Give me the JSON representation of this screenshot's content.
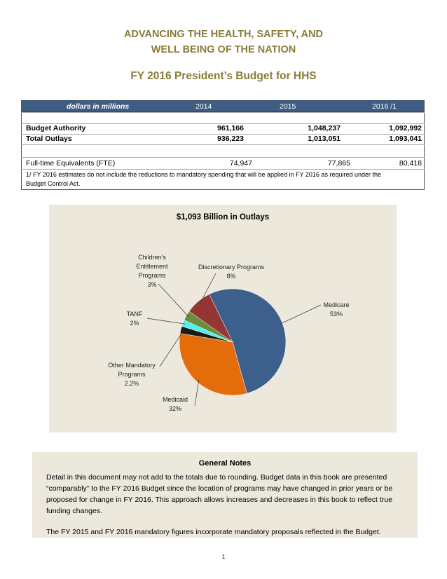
{
  "header": {
    "line1": "ADVANCING THE HEALTH, SAFETY, AND",
    "line2": "WELL BEING OF THE NATION",
    "subtitle": "FY 2016 President’s Budget for HHS"
  },
  "table": {
    "unit_label": "dollars in millions",
    "columns": [
      "2014",
      "2015",
      "2016 /1"
    ],
    "rows": [
      {
        "label": "Budget Authority",
        "values": [
          "961,166",
          "1,048,237",
          "1,092,992"
        ]
      },
      {
        "label": "Total Outlays",
        "values": [
          "936,223",
          "1,013,051",
          "1,093,041"
        ]
      },
      {
        "label": "Full-time Equivalents (FTE)",
        "values": [
          "74,947",
          "77,865",
          "80,418"
        ]
      }
    ],
    "footnote_line1": "1/  FY 2016 estimates do not include the reductions to mandatory spending that will be applied in FY 2016 as required under the",
    "footnote_line2": "Budget Control Act."
  },
  "chart_data": {
    "type": "pie",
    "title": "$1,093 Billion in Outlays",
    "slices": [
      {
        "label": "Medicare",
        "value": 53,
        "pct_label": "53%",
        "color": "#3c5f8c"
      },
      {
        "label": "Medicaid",
        "value": 32,
        "pct_label": "32%",
        "color": "#e46c0a"
      },
      {
        "label": "Other Mandatory Programs",
        "value": 2.2,
        "pct_label": "2.2%",
        "color": "#1a1a1a"
      },
      {
        "label": "TANF",
        "value": 2,
        "pct_label": "2%",
        "color": "#4ff0f0"
      },
      {
        "label": "Children's Entitlement Programs",
        "value": 3,
        "pct_label": "3%",
        "color": "#6b8e3a"
      },
      {
        "label": "Discretionary Programs",
        "value": 8,
        "pct_label": "8%",
        "color": "#943634"
      }
    ]
  },
  "notes": {
    "heading": "General Notes",
    "para1": "Detail in this document may not add to the totals due to rounding.  Budget data in this book are presented “comparably” to the FY 2016 Budget since the location of programs may have changed in prior years or be proposed for change in FY 2016.  This approach allows increases and decreases in this book to reflect true funding changes.",
    "para2": "The FY 2015 and FY 2016 mandatory figures incorporate mandatory proposals reflected in the Budget."
  },
  "page_number": "1"
}
